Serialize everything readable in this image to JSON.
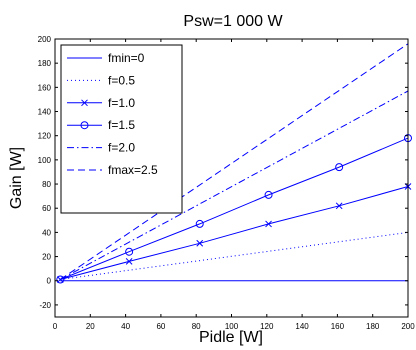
{
  "chart_data": {
    "type": "line",
    "title": "Psw=1 000 W",
    "xlabel": "Pidle [W]",
    "ylabel": "Gain [W]",
    "xlim": [
      0,
      200
    ],
    "ylim": [
      -30,
      200
    ],
    "xticks": [
      0,
      20,
      40,
      60,
      80,
      100,
      120,
      140,
      160,
      180,
      200
    ],
    "yticks": [
      -20,
      0,
      20,
      40,
      60,
      80,
      100,
      120,
      140,
      160,
      180,
      200
    ],
    "grid": false,
    "legend_position": "top-left",
    "color": "#0000ff",
    "series": [
      {
        "name": "fmin=0",
        "style": "solid",
        "marker": "none",
        "x": [
          3,
          200
        ],
        "y": [
          0,
          0
        ]
      },
      {
        "name": "f=0.5",
        "style": "dotted",
        "marker": "none",
        "x": [
          3,
          200
        ],
        "y": [
          1,
          40
        ]
      },
      {
        "name": "f=1.0",
        "style": "solid",
        "marker": "x",
        "x": [
          3,
          42,
          82,
          121,
          161,
          200
        ],
        "y": [
          1,
          16,
          31,
          47,
          62,
          78
        ]
      },
      {
        "name": "f=1.5",
        "style": "solid",
        "marker": "o",
        "x": [
          3,
          42,
          82,
          121,
          161,
          200
        ],
        "y": [
          1,
          24,
          47,
          71,
          94,
          118
        ]
      },
      {
        "name": "f=2.0",
        "style": "dashdot",
        "marker": "none",
        "x": [
          3,
          200
        ],
        "y": [
          1,
          157
        ]
      },
      {
        "name": "fmax=2.5",
        "style": "dashed",
        "marker": "none",
        "x": [
          3,
          200
        ],
        "y": [
          1,
          196
        ]
      }
    ]
  }
}
